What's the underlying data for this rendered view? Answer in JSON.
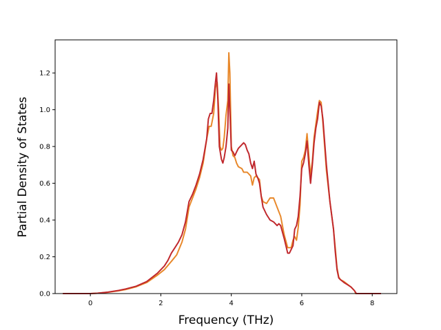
{
  "chart_data": {
    "type": "line",
    "title": "",
    "xlabel": "Frequency (THz)",
    "ylabel": "Partial Density of States",
    "xlim": [
      -1.0,
      8.7
    ],
    "ylim": [
      0.0,
      1.38
    ],
    "xticks": [
      0,
      2,
      4,
      6,
      8
    ],
    "xtick_labels": [
      "0",
      "2",
      "4",
      "6",
      "8"
    ],
    "yticks": [
      0.0,
      0.2,
      0.4,
      0.6,
      0.8,
      1.0,
      1.2
    ],
    "ytick_labels": [
      "0.0",
      "0.2",
      "0.4",
      "0.6",
      "0.8",
      "1.0",
      "1.2"
    ],
    "grid": false,
    "legend": false,
    "series": [
      {
        "color": "#e8882a",
        "points": [
          [
            -0.78,
            0.0
          ],
          [
            0.0,
            0.0
          ],
          [
            0.2,
            0.002
          ],
          [
            0.5,
            0.007
          ],
          [
            0.8,
            0.015
          ],
          [
            1.0,
            0.022
          ],
          [
            1.3,
            0.037
          ],
          [
            1.6,
            0.06
          ],
          [
            1.9,
            0.1
          ],
          [
            2.1,
            0.13
          ],
          [
            2.3,
            0.175
          ],
          [
            2.45,
            0.21
          ],
          [
            2.6,
            0.28
          ],
          [
            2.7,
            0.35
          ],
          [
            2.8,
            0.47
          ],
          [
            2.9,
            0.52
          ],
          [
            3.0,
            0.57
          ],
          [
            3.1,
            0.63
          ],
          [
            3.2,
            0.71
          ],
          [
            3.3,
            0.84
          ],
          [
            3.37,
            0.91
          ],
          [
            3.43,
            0.91
          ],
          [
            3.5,
            0.98
          ],
          [
            3.55,
            1.12
          ],
          [
            3.6,
            1.15
          ],
          [
            3.64,
            1.0
          ],
          [
            3.68,
            0.8
          ],
          [
            3.72,
            0.78
          ],
          [
            3.76,
            0.79
          ],
          [
            3.8,
            0.85
          ],
          [
            3.85,
            0.97
          ],
          [
            3.9,
            1.05
          ],
          [
            3.93,
            1.31
          ],
          [
            3.96,
            1.2
          ],
          [
            4.0,
            0.8
          ],
          [
            4.05,
            0.75
          ],
          [
            4.1,
            0.74
          ],
          [
            4.15,
            0.71
          ],
          [
            4.2,
            0.69
          ],
          [
            4.3,
            0.68
          ],
          [
            4.35,
            0.66
          ],
          [
            4.45,
            0.66
          ],
          [
            4.55,
            0.64
          ],
          [
            4.6,
            0.59
          ],
          [
            4.65,
            0.63
          ],
          [
            4.7,
            0.64
          ],
          [
            4.75,
            0.63
          ],
          [
            4.8,
            0.62
          ],
          [
            4.85,
            0.53
          ],
          [
            4.9,
            0.5
          ],
          [
            5.0,
            0.49
          ],
          [
            5.1,
            0.52
          ],
          [
            5.2,
            0.52
          ],
          [
            5.3,
            0.47
          ],
          [
            5.4,
            0.42
          ],
          [
            5.5,
            0.32
          ],
          [
            5.6,
            0.25
          ],
          [
            5.7,
            0.25
          ],
          [
            5.75,
            0.29
          ],
          [
            5.8,
            0.31
          ],
          [
            5.85,
            0.29
          ],
          [
            5.9,
            0.36
          ],
          [
            5.95,
            0.48
          ],
          [
            6.0,
            0.72
          ],
          [
            6.05,
            0.74
          ],
          [
            6.1,
            0.78
          ],
          [
            6.15,
            0.87
          ],
          [
            6.2,
            0.75
          ],
          [
            6.25,
            0.64
          ],
          [
            6.3,
            0.72
          ],
          [
            6.35,
            0.85
          ],
          [
            6.45,
            0.99
          ],
          [
            6.5,
            1.05
          ],
          [
            6.55,
            1.04
          ],
          [
            6.6,
            0.93
          ],
          [
            6.7,
            0.67
          ],
          [
            6.8,
            0.5
          ],
          [
            6.9,
            0.35
          ],
          [
            6.95,
            0.25
          ],
          [
            7.0,
            0.14
          ],
          [
            7.05,
            0.09
          ],
          [
            7.1,
            0.075
          ],
          [
            7.2,
            0.065
          ],
          [
            7.3,
            0.05
          ],
          [
            7.4,
            0.035
          ],
          [
            7.5,
            0.015
          ],
          [
            7.53,
            0.0
          ],
          [
            8.25,
            0.0
          ]
        ]
      },
      {
        "color": "#c0282d",
        "points": [
          [
            -0.78,
            0.0
          ],
          [
            0.0,
            0.0
          ],
          [
            0.2,
            0.002
          ],
          [
            0.5,
            0.008
          ],
          [
            0.8,
            0.017
          ],
          [
            1.0,
            0.025
          ],
          [
            1.3,
            0.04
          ],
          [
            1.6,
            0.065
          ],
          [
            1.9,
            0.11
          ],
          [
            2.1,
            0.15
          ],
          [
            2.2,
            0.18
          ],
          [
            2.3,
            0.22
          ],
          [
            2.4,
            0.25
          ],
          [
            2.5,
            0.28
          ],
          [
            2.6,
            0.32
          ],
          [
            2.7,
            0.39
          ],
          [
            2.8,
            0.5
          ],
          [
            2.9,
            0.54
          ],
          [
            3.0,
            0.59
          ],
          [
            3.1,
            0.65
          ],
          [
            3.2,
            0.73
          ],
          [
            3.3,
            0.84
          ],
          [
            3.35,
            0.95
          ],
          [
            3.4,
            0.98
          ],
          [
            3.45,
            0.98
          ],
          [
            3.5,
            1.05
          ],
          [
            3.55,
            1.15
          ],
          [
            3.58,
            1.2
          ],
          [
            3.62,
            1.05
          ],
          [
            3.66,
            0.8
          ],
          [
            3.72,
            0.73
          ],
          [
            3.76,
            0.71
          ],
          [
            3.8,
            0.74
          ],
          [
            3.85,
            0.8
          ],
          [
            3.9,
            0.9
          ],
          [
            3.93,
            1.14
          ],
          [
            3.97,
            0.95
          ],
          [
            4.0,
            0.78
          ],
          [
            4.05,
            0.77
          ],
          [
            4.1,
            0.75
          ],
          [
            4.15,
            0.77
          ],
          [
            4.2,
            0.79
          ],
          [
            4.25,
            0.8
          ],
          [
            4.3,
            0.81
          ],
          [
            4.35,
            0.82
          ],
          [
            4.4,
            0.81
          ],
          [
            4.45,
            0.78
          ],
          [
            4.5,
            0.76
          ],
          [
            4.55,
            0.71
          ],
          [
            4.6,
            0.68
          ],
          [
            4.65,
            0.72
          ],
          [
            4.7,
            0.65
          ],
          [
            4.75,
            0.63
          ],
          [
            4.8,
            0.6
          ],
          [
            4.85,
            0.53
          ],
          [
            4.9,
            0.47
          ],
          [
            5.0,
            0.43
          ],
          [
            5.1,
            0.4
          ],
          [
            5.2,
            0.39
          ],
          [
            5.3,
            0.37
          ],
          [
            5.35,
            0.38
          ],
          [
            5.4,
            0.37
          ],
          [
            5.5,
            0.3
          ],
          [
            5.6,
            0.22
          ],
          [
            5.65,
            0.22
          ],
          [
            5.75,
            0.26
          ],
          [
            5.8,
            0.35
          ],
          [
            5.85,
            0.37
          ],
          [
            5.9,
            0.42
          ],
          [
            5.95,
            0.53
          ],
          [
            6.0,
            0.68
          ],
          [
            6.05,
            0.71
          ],
          [
            6.1,
            0.76
          ],
          [
            6.15,
            0.83
          ],
          [
            6.2,
            0.7
          ],
          [
            6.25,
            0.6
          ],
          [
            6.3,
            0.7
          ],
          [
            6.35,
            0.82
          ],
          [
            6.4,
            0.9
          ],
          [
            6.45,
            0.95
          ],
          [
            6.5,
            1.04
          ],
          [
            6.55,
            1.02
          ],
          [
            6.6,
            0.95
          ],
          [
            6.7,
            0.7
          ],
          [
            6.8,
            0.5
          ],
          [
            6.9,
            0.35
          ],
          [
            6.95,
            0.23
          ],
          [
            7.0,
            0.13
          ],
          [
            7.05,
            0.085
          ],
          [
            7.1,
            0.075
          ],
          [
            7.2,
            0.06
          ],
          [
            7.3,
            0.048
          ],
          [
            7.4,
            0.035
          ],
          [
            7.5,
            0.015
          ],
          [
            7.55,
            0.0
          ],
          [
            8.25,
            0.0
          ]
        ]
      }
    ]
  }
}
